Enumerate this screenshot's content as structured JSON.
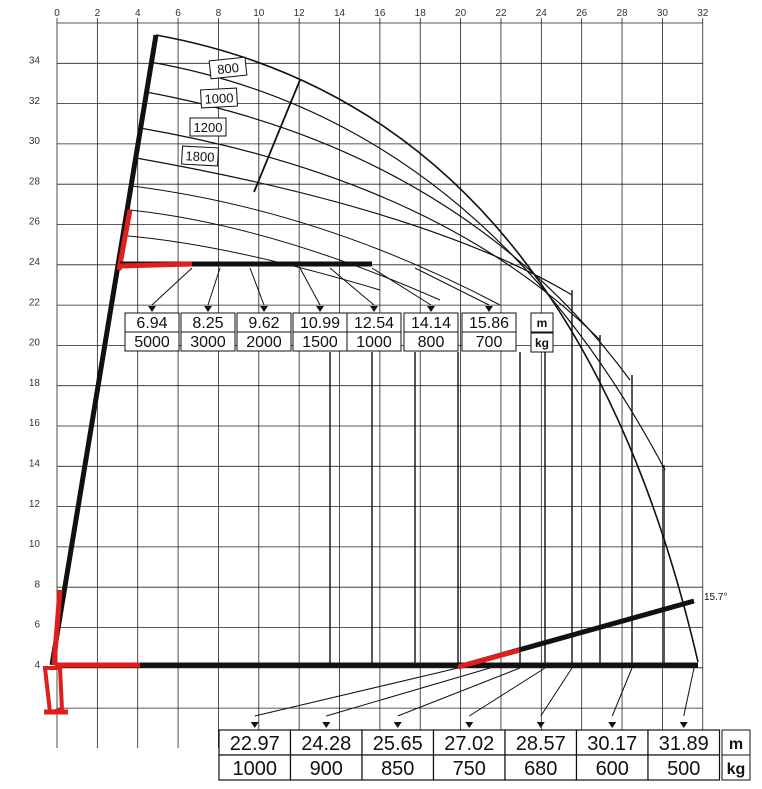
{
  "x_axis": {
    "ticks": [
      "0",
      "2",
      "4",
      "6",
      "8",
      "10",
      "12",
      "14",
      "16",
      "18",
      "20",
      "22",
      "24",
      "26",
      "28",
      "30",
      "32"
    ]
  },
  "y_axis": {
    "ticks": [
      "4",
      "6",
      "8",
      "10",
      "12",
      "14",
      "16",
      "18",
      "20",
      "22",
      "24",
      "26",
      "28",
      "30",
      "32",
      "34"
    ]
  },
  "angle_label": "15.7°",
  "jib_loads": [
    "800",
    "1000",
    "1200",
    "1800"
  ],
  "upper_table": {
    "distances": [
      "6.94",
      "8.25",
      "9.62",
      "10.99",
      "12.54",
      "14.14",
      "15.86"
    ],
    "loads": [
      "5000",
      "3000",
      "2000",
      "1500",
      "1000",
      "800",
      "700"
    ],
    "unit_top": "m",
    "unit_bottom": "kg"
  },
  "lower_table": {
    "distances": [
      "22.97",
      "24.28",
      "25.65",
      "27.02",
      "28.57",
      "30.17",
      "31.89"
    ],
    "loads": [
      "1000",
      "900",
      "850",
      "750",
      "680",
      "600",
      "500"
    ],
    "unit_top": "m",
    "unit_bottom": "kg"
  },
  "colors": {
    "boom": "#111111",
    "hydraulic": "#e11d1d",
    "grid": "#222222"
  }
}
